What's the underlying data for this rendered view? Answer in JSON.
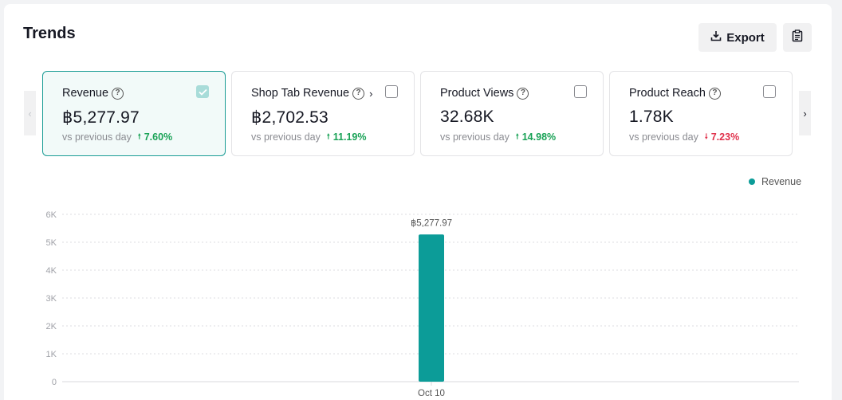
{
  "header": {
    "title": "Trends",
    "export_label": "Export"
  },
  "icons": {
    "export": "download-icon",
    "clipboard": "clipboard-icon",
    "prev": "chevron-left-icon",
    "next": "chevron-right-icon",
    "help": "question-circle-icon"
  },
  "cards": [
    {
      "label": "Revenue",
      "value": "฿5,277.97",
      "compare": "vs previous day",
      "delta": "7.60%",
      "direction": "up",
      "selected": true,
      "has_link": false
    },
    {
      "label": "Shop Tab Revenue",
      "value": "฿2,702.53",
      "compare": "vs previous day",
      "delta": "11.19%",
      "direction": "up",
      "selected": false,
      "has_link": true
    },
    {
      "label": "Product Views",
      "value": "32.68K",
      "compare": "vs previous day",
      "delta": "14.98%",
      "direction": "up",
      "selected": false,
      "has_link": false
    },
    {
      "label": "Product Reach",
      "value": "1.78K",
      "compare": "vs previous day",
      "delta": "7.23%",
      "direction": "down",
      "selected": false,
      "has_link": false
    }
  ],
  "colors": {
    "accent": "#0c9c98",
    "up": "#19a256",
    "down": "#e0314b"
  },
  "chart_data": {
    "type": "bar",
    "categories": [
      "Oct 10"
    ],
    "series": [
      {
        "name": "Revenue",
        "values": [
          5277.97
        ],
        "labels": [
          "฿5,277.97"
        ]
      }
    ],
    "ylim": [
      0,
      6000
    ],
    "yticks": [
      "0",
      "1K",
      "2K",
      "3K",
      "4K",
      "5K",
      "6K"
    ],
    "legend_position": "top-right",
    "grid": true
  }
}
